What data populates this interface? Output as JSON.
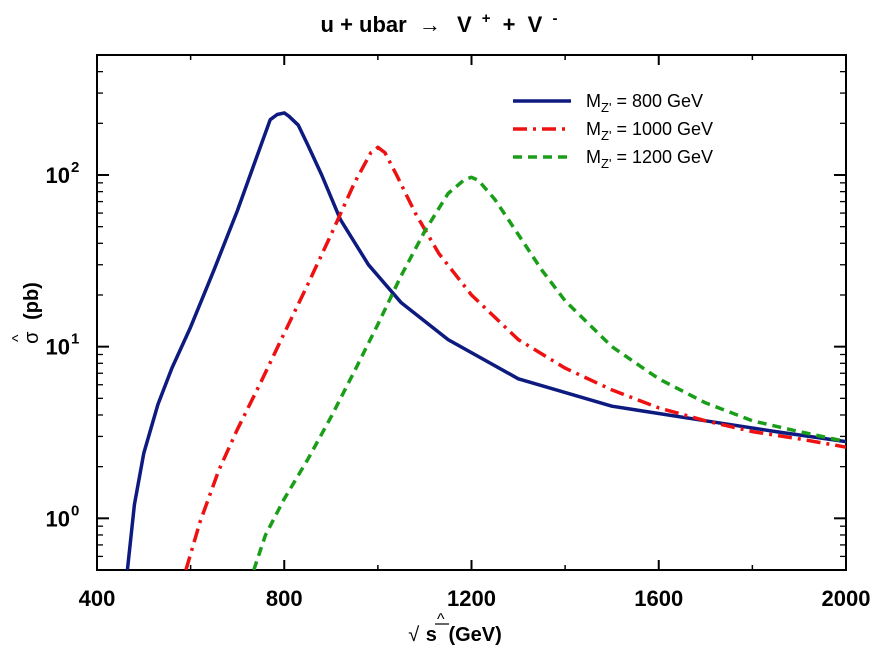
{
  "chart_data": {
    "type": "line",
    "title_parts": {
      "lhs": "u + ubar",
      "arrow": "→",
      "v1": "V",
      "v1_sup": "+",
      "plus": "+",
      "v2": "V",
      "v2_sup": "-"
    },
    "xlabel": {
      "sqrt": "√",
      "hat": "^",
      "var": "s",
      "unit": "(GeV)"
    },
    "ylabel": {
      "hat": "^",
      "var": "σ",
      "unit": "(pb)"
    },
    "xlim": [
      400,
      2000
    ],
    "ylim": [
      0.5,
      500
    ],
    "yscale": "log",
    "xticks": [
      400,
      800,
      1200,
      1600,
      2000
    ],
    "xtick_labels": [
      "400",
      "800",
      "1200",
      "1600",
      "2000"
    ],
    "yticks": [
      {
        "value": 1,
        "base": "10",
        "exp": "0"
      },
      {
        "value": 10,
        "base": "10",
        "exp": "1"
      },
      {
        "value": 100,
        "base": "10",
        "exp": "2"
      }
    ],
    "legend_position": "top-right",
    "series": [
      {
        "legend_prefix": "M",
        "legend_sub": "Z'",
        "legend_suffix": " = 800 GeV",
        "color": "#0d1a7f",
        "dash": "solid",
        "x": [
          465,
          480,
          500,
          530,
          560,
          600,
          650,
          700,
          740,
          770,
          785,
          800,
          810,
          830,
          850,
          880,
          920,
          980,
          1050,
          1150,
          1300,
          1500,
          1700,
          1850,
          2000
        ],
        "y": [
          0.5,
          1.2,
          2.4,
          4.6,
          7.5,
          13,
          28,
          62,
          125,
          210,
          225,
          230,
          220,
          195,
          150,
          100,
          55,
          30,
          18,
          11,
          6.5,
          4.5,
          3.7,
          3.2,
          2.8
        ]
      },
      {
        "legend_prefix": "M",
        "legend_sub": "Z'",
        "legend_suffix": " = 1000 GeV",
        "color": "#ee1111",
        "dash": "dashdot",
        "x": [
          590,
          620,
          660,
          700,
          750,
          800,
          850,
          900,
          950,
          985,
          1000,
          1015,
          1040,
          1080,
          1130,
          1200,
          1300,
          1400,
          1500,
          1600,
          1700,
          1800,
          1900,
          2000
        ],
        "y": [
          0.5,
          0.95,
          1.9,
          3.3,
          6.2,
          12,
          23,
          45,
          90,
          135,
          145,
          135,
          100,
          60,
          35,
          20,
          11,
          7.5,
          5.6,
          4.4,
          3.7,
          3.2,
          2.9,
          2.6
        ]
      },
      {
        "legend_prefix": "M",
        "legend_sub": "Z'",
        "legend_suffix": " = 1200 GeV",
        "color": "#1a9e1a",
        "dash": "dashed",
        "x": [
          735,
          760,
          800,
          850,
          900,
          950,
          1000,
          1050,
          1100,
          1150,
          1185,
          1200,
          1215,
          1250,
          1300,
          1350,
          1400,
          1500,
          1600,
          1700,
          1800,
          1900,
          2000
        ],
        "y": [
          0.5,
          0.8,
          1.3,
          2.2,
          3.9,
          7.2,
          13.5,
          26,
          47,
          78,
          94,
          97,
          93,
          72,
          45,
          28,
          18.5,
          10,
          6.5,
          4.7,
          3.7,
          3.2,
          2.8
        ]
      }
    ]
  }
}
